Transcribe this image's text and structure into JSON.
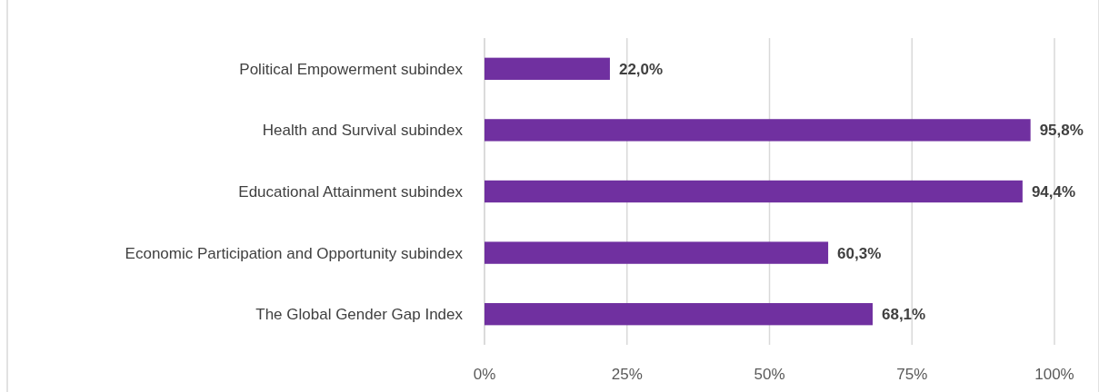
{
  "chart_data": {
    "type": "bar",
    "orientation": "horizontal",
    "categories": [
      "Political Empowerment subindex",
      "Health and Survival subindex",
      "Educational Attainment subindex",
      "Economic Participation and Opportunity subindex",
      "The Global Gender Gap Index"
    ],
    "values": [
      22.0,
      95.8,
      94.4,
      60.3,
      68.1
    ],
    "value_labels": [
      "22,0%",
      "95,8%",
      "94,4%",
      "60,3%",
      "68,1%"
    ],
    "color": "#7030a0",
    "xlim": [
      0,
      100
    ],
    "xticks": [
      {
        "value": 0,
        "label": "0%"
      },
      {
        "value": 25,
        "label": "25%"
      },
      {
        "value": 50,
        "label": "50%"
      },
      {
        "value": 75,
        "label": "75%"
      },
      {
        "value": 100,
        "label": "100%"
      }
    ],
    "grid": "x"
  }
}
